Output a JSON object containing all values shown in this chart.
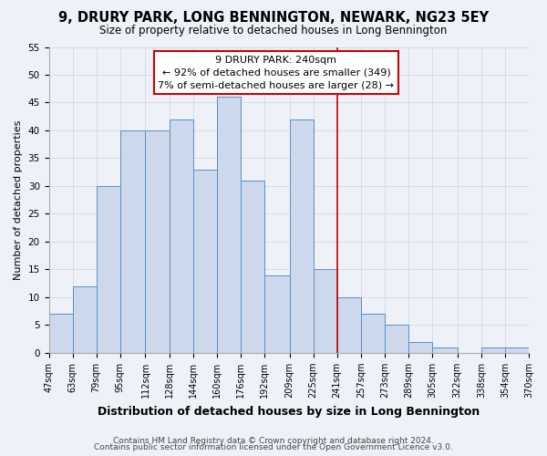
{
  "title": "9, DRURY PARK, LONG BENNINGTON, NEWARK, NG23 5EY",
  "subtitle": "Size of property relative to detached houses in Long Bennington",
  "xlabel": "Distribution of detached houses by size in Long Bennington",
  "ylabel": "Number of detached properties",
  "footer_line1": "Contains HM Land Registry data © Crown copyright and database right 2024.",
  "footer_line2": "Contains public sector information licensed under the Open Government Licence v3.0.",
  "annotation_title": "9 DRURY PARK: 240sqm",
  "annotation_line1": "← 92% of detached houses are smaller (349)",
  "annotation_line2": "7% of semi-detached houses are larger (28) →",
  "bar_edges": [
    47,
    63,
    79,
    95,
    112,
    128,
    144,
    160,
    176,
    192,
    209,
    225,
    241,
    257,
    273,
    289,
    305,
    322,
    338,
    354,
    370
  ],
  "bar_heights": [
    7,
    12,
    30,
    40,
    40,
    42,
    33,
    46,
    31,
    14,
    42,
    15,
    10,
    7,
    5,
    2,
    1,
    0,
    1,
    1
  ],
  "tick_labels": [
    "47sqm",
    "63sqm",
    "79sqm",
    "95sqm",
    "112sqm",
    "128sqm",
    "144sqm",
    "160sqm",
    "176sqm",
    "192sqm",
    "209sqm",
    "225sqm",
    "241sqm",
    "257sqm",
    "273sqm",
    "289sqm",
    "305sqm",
    "322sqm",
    "338sqm",
    "354sqm",
    "370sqm"
  ],
  "bar_color": "#ccd9ec",
  "bar_edge_color": "#5b8dc8",
  "vline_x": 241,
  "vline_color": "#cc0000",
  "annotation_box_edge_color": "#cc0000",
  "annotation_box_face_color": "#ffffff",
  "grid_color": "#d0d8e8",
  "bg_color": "#eef2f8",
  "ylim": [
    0,
    55
  ],
  "yticks": [
    0,
    5,
    10,
    15,
    20,
    25,
    30,
    35,
    40,
    45,
    50,
    55
  ],
  "title_fontsize": 10.5,
  "subtitle_fontsize": 8.5,
  "ylabel_fontsize": 8,
  "xlabel_fontsize": 9,
  "tick_fontsize": 7,
  "annotation_fontsize": 8,
  "footer_fontsize": 6.5
}
